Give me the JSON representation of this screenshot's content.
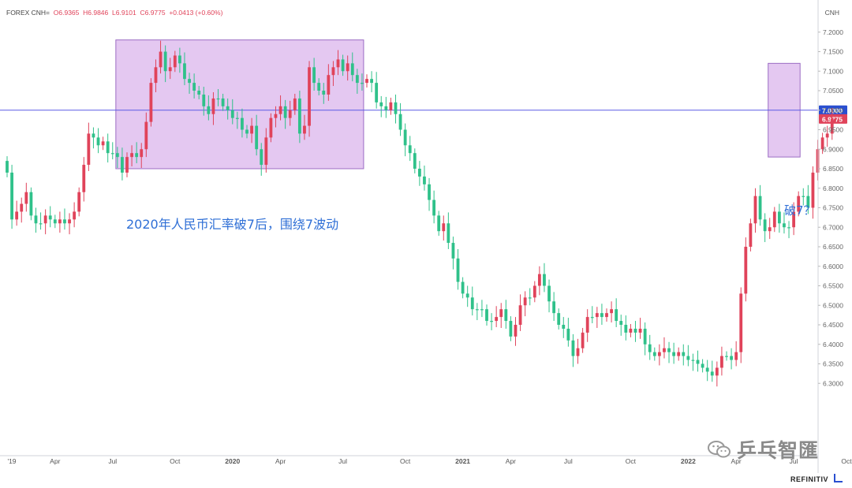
{
  "header": {
    "symbol": "FOREX CNH=",
    "open": "O6.9365",
    "high": "H6.9846",
    "low": "L6.9101",
    "close": "C6.9775",
    "change": "+0.0413 (+0.60%)"
  },
  "axis_unit": "CNH",
  "branding": "REFINITIV",
  "watermark": "乒乓智匯",
  "annotations": {
    "range_note": "2020年人民币汇率破7后，围绕7波动",
    "break_note": "破7？"
  },
  "colors": {
    "up": "#e0435a",
    "down": "#2fc18a",
    "highlight_box": "#d9b3eb",
    "level_line": "#5a5ae6",
    "level_label_bg": "#2a4fd0",
    "price_label_bg": "#e0435a",
    "annotation_text": "#2f6fd6"
  },
  "chart_data": {
    "type": "candlestick",
    "title": "FOREX CNH=",
    "ylim": [
      6.25,
      7.25
    ],
    "y_ticks": [
      "7.2000",
      "7.1500",
      "7.1000",
      "7.0500",
      "7.0000",
      "6.9500",
      "6.9000",
      "6.8500",
      "6.8000",
      "6.7500",
      "6.7000",
      "6.6500",
      "6.6000",
      "6.5500",
      "6.5000",
      "6.4500",
      "6.4000",
      "6.3500",
      "6.3000"
    ],
    "x_ticks": [
      "'19",
      "Apr",
      "Jul",
      "Oct",
      "2020",
      "Apr",
      "Jul",
      "Oct",
      "2021",
      "Apr",
      "Jul",
      "Oct",
      "2022",
      "Apr",
      "Jul",
      "Oct"
    ],
    "x_tick_bold": [
      "2020",
      "2021",
      "2022"
    ],
    "horizontal_level": {
      "value": 7.0,
      "label": "7.0000"
    },
    "last_price": {
      "value": 6.9775,
      "label": "6.9775"
    },
    "highlight_boxes": [
      {
        "from_week": 23,
        "to_week": 74,
        "y_low": 6.85,
        "y_high": 7.18
      },
      {
        "from_week": 159,
        "to_week": 165,
        "y_low": 6.88,
        "y_high": 7.12
      }
    ],
    "weekly_close": [
      6.84,
      6.72,
      6.74,
      6.76,
      6.79,
      6.73,
      6.71,
      6.71,
      6.73,
      6.72,
      6.71,
      6.72,
      6.71,
      6.72,
      6.74,
      6.79,
      6.86,
      6.94,
      6.93,
      6.91,
      6.92,
      6.89,
      6.89,
      6.88,
      6.84,
      6.88,
      6.89,
      6.88,
      6.9,
      6.97,
      7.07,
      7.11,
      7.15,
      7.1,
      7.11,
      7.14,
      7.12,
      7.08,
      7.07,
      7.05,
      7.04,
      7.01,
      6.99,
      7.03,
      7.03,
      7.01,
      7.0,
      6.98,
      6.98,
      6.95,
      6.94,
      6.96,
      6.9,
      6.86,
      6.93,
      6.98,
      6.99,
      7.01,
      6.98,
      7.0,
      7.03,
      6.94,
      6.96,
      7.11,
      7.07,
      7.05,
      7.04,
      7.09,
      7.11,
      7.13,
      7.1,
      7.12,
      7.09,
      7.07,
      7.07,
      7.08,
      7.07,
      7.02,
      7.01,
      7.0,
      7.02,
      6.99,
      6.95,
      6.91,
      6.89,
      6.85,
      6.83,
      6.81,
      6.77,
      6.73,
      6.69,
      6.71,
      6.66,
      6.62,
      6.56,
      6.53,
      6.52,
      6.49,
      6.49,
      6.49,
      6.46,
      6.46,
      6.47,
      6.49,
      6.46,
      6.42,
      6.45,
      6.5,
      6.52,
      6.52,
      6.55,
      6.58,
      6.55,
      6.51,
      6.48,
      6.45,
      6.44,
      6.41,
      6.37,
      6.39,
      6.43,
      6.47,
      6.47,
      6.48,
      6.47,
      6.48,
      6.49,
      6.46,
      6.45,
      6.43,
      6.44,
      6.43,
      6.44,
      6.4,
      6.38,
      6.37,
      6.38,
      6.39,
      6.38,
      6.37,
      6.38,
      6.37,
      6.36,
      6.36,
      6.35,
      6.34,
      6.33,
      6.32,
      6.34,
      6.37,
      6.37,
      6.36,
      6.38,
      6.53,
      6.65,
      6.71,
      6.78,
      6.72,
      6.69,
      6.7,
      6.74,
      6.71,
      6.7,
      6.7,
      6.74,
      6.78,
      6.78,
      6.75,
      6.84,
      6.9,
      6.93,
      6.94,
      6.9775
    ]
  }
}
